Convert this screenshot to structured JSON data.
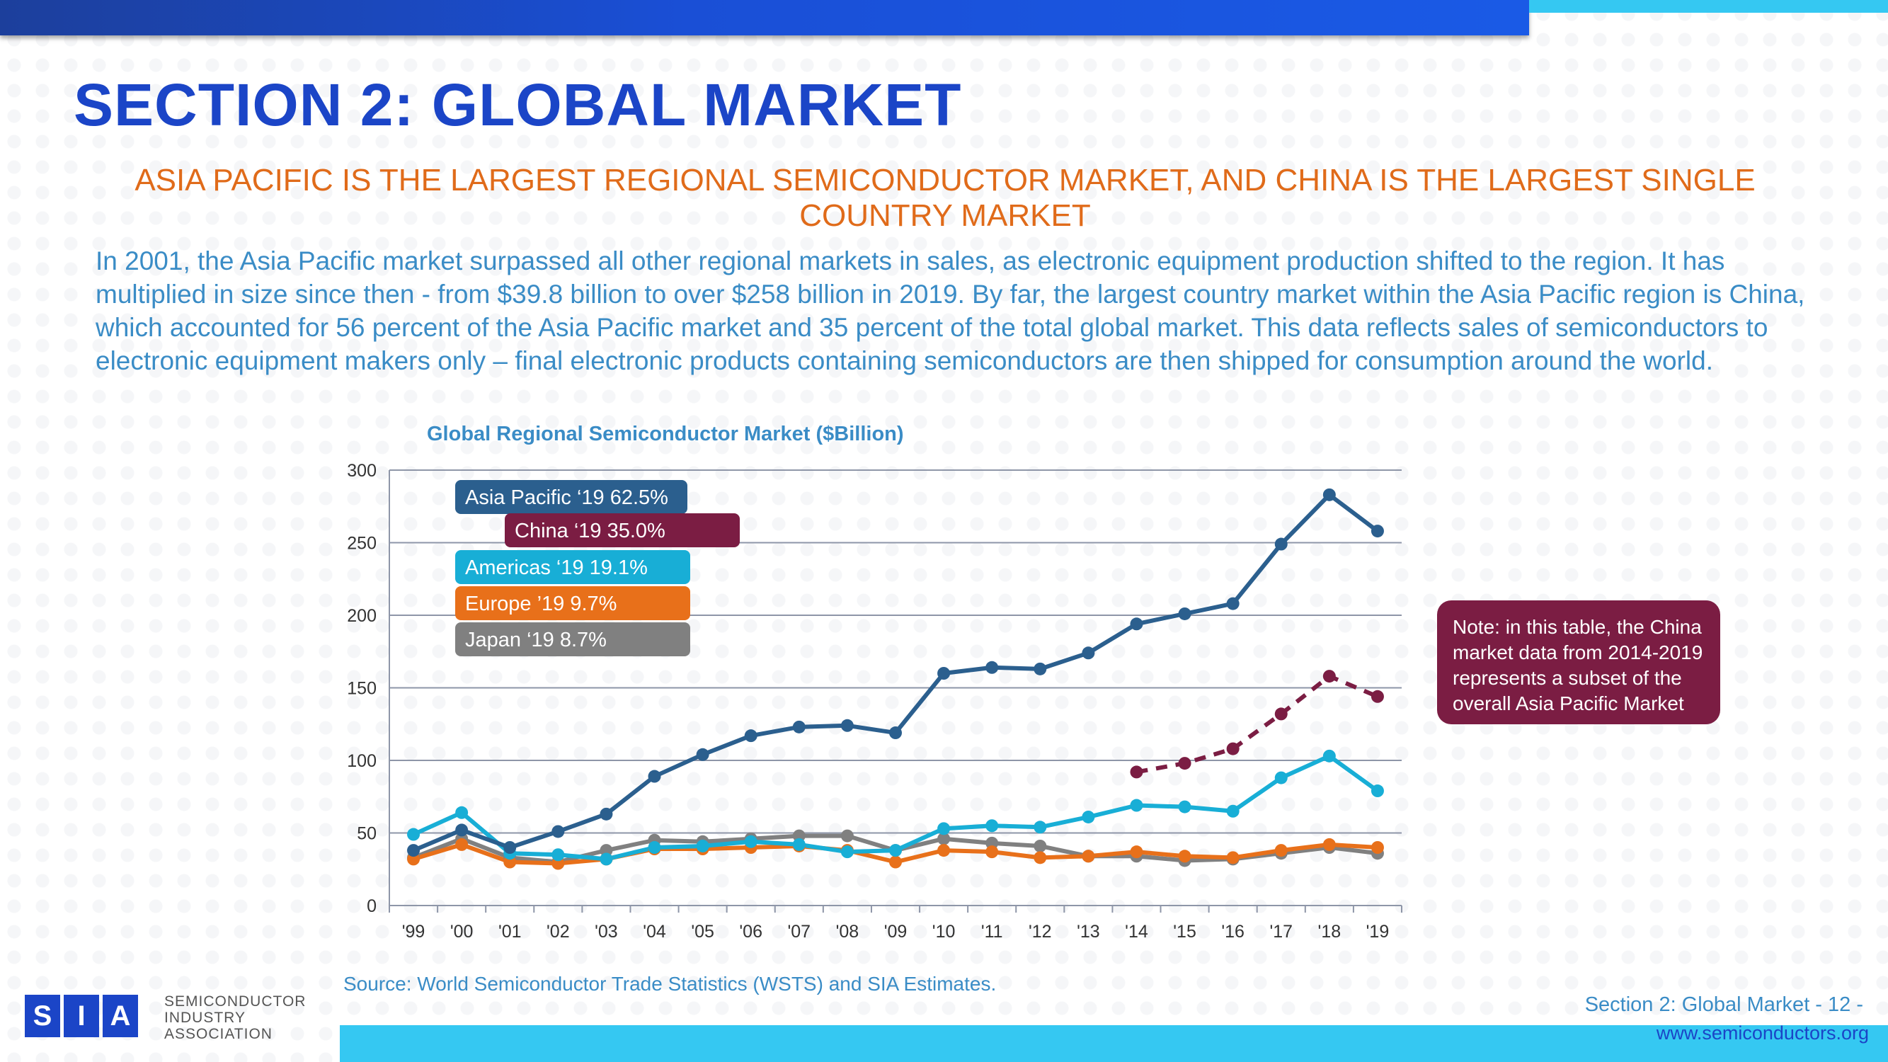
{
  "title": "SECTION 2: GLOBAL MARKET",
  "subtitle": "ASIA PACIFIC IS THE LARGEST REGIONAL SEMICONDUCTOR MARKET, AND CHINA IS THE LARGEST SINGLE COUNTRY MARKET",
  "body": "In 2001, the Asia Pacific market surpassed all other regional markets in sales, as electronic equipment production shifted to the region. It has multiplied in size since then - from $39.8 billion to over $258 billion in 2019. By far, the largest country market within the Asia Pacific region is China, which accounted for 56 percent of the Asia Pacific market and 35 percent of the total global market. This data reflects sales of semiconductors to electronic equipment makers only – final electronic products containing semiconductors are then shipped for consumption around the world.",
  "note": "Note: in this table, the China market data from 2014-2019 represents a subset of the overall Asia Pacific Market",
  "source": "Source: World Semiconductor Trade Statistics (WSTS) and SIA Estimates.",
  "footer": {
    "section": "Section 2: Global Market - 12 -",
    "url": "www.semiconductors.org"
  },
  "logo": {
    "letters": [
      "S",
      "I",
      "A"
    ],
    "lines": [
      "SEMICONDUCTOR",
      "INDUSTRY",
      "ASSOCIATION"
    ]
  },
  "chart_data": {
    "type": "line",
    "title": "Global Regional Semiconductor Market ($Billion)",
    "xlabel": "",
    "ylabel": "",
    "ylim": [
      0,
      300
    ],
    "yticks": [
      0,
      50,
      100,
      150,
      200,
      250,
      300
    ],
    "grid": true,
    "categories": [
      "'99",
      "'00",
      "'01",
      "'02",
      "'03",
      "'04",
      "'05",
      "'06",
      "'07",
      "'08",
      "'09",
      "'10",
      "'11",
      "'12",
      "'13",
      "'14",
      "'15",
      "'16",
      "'17",
      "'18",
      "'19"
    ],
    "series": [
      {
        "name": "Asia Pacific",
        "label": "Asia Pacific ‘19  62.5%",
        "color": "#2b5f8e",
        "dashed": false,
        "values": [
          38,
          52,
          40,
          51,
          63,
          89,
          104,
          117,
          123,
          124,
          119,
          160,
          164,
          163,
          174,
          194,
          201,
          208,
          249,
          283,
          258
        ]
      },
      {
        "name": "China",
        "label": "China ‘19  35.0%",
        "color": "#7b1d43",
        "dashed": true,
        "values": [
          null,
          null,
          null,
          null,
          null,
          null,
          null,
          null,
          null,
          null,
          null,
          null,
          null,
          null,
          null,
          92,
          98,
          108,
          132,
          158,
          144
        ]
      },
      {
        "name": "Americas",
        "label": "Americas ‘19  19.1%",
        "color": "#18aed6",
        "dashed": false,
        "values": [
          49,
          64,
          36,
          35,
          32,
          40,
          41,
          44,
          42,
          37,
          38,
          53,
          55,
          54,
          61,
          69,
          68,
          65,
          88,
          103,
          79
        ]
      },
      {
        "name": "Europe",
        "label": "Europe ’19  9.7%",
        "color": "#e8701a",
        "dashed": false,
        "values": [
          32,
          42,
          30,
          29,
          32,
          39,
          39,
          40,
          41,
          38,
          30,
          38,
          37,
          33,
          34,
          37,
          34,
          33,
          38,
          42,
          40
        ]
      },
      {
        "name": "Japan",
        "label": "Japan ‘19  8.7%",
        "color": "#808080",
        "dashed": false,
        "values": [
          33,
          46,
          33,
          30,
          38,
          45,
          44,
          46,
          48,
          48,
          38,
          46,
          43,
          41,
          34,
          34,
          31,
          32,
          36,
          40,
          36
        ]
      }
    ]
  }
}
